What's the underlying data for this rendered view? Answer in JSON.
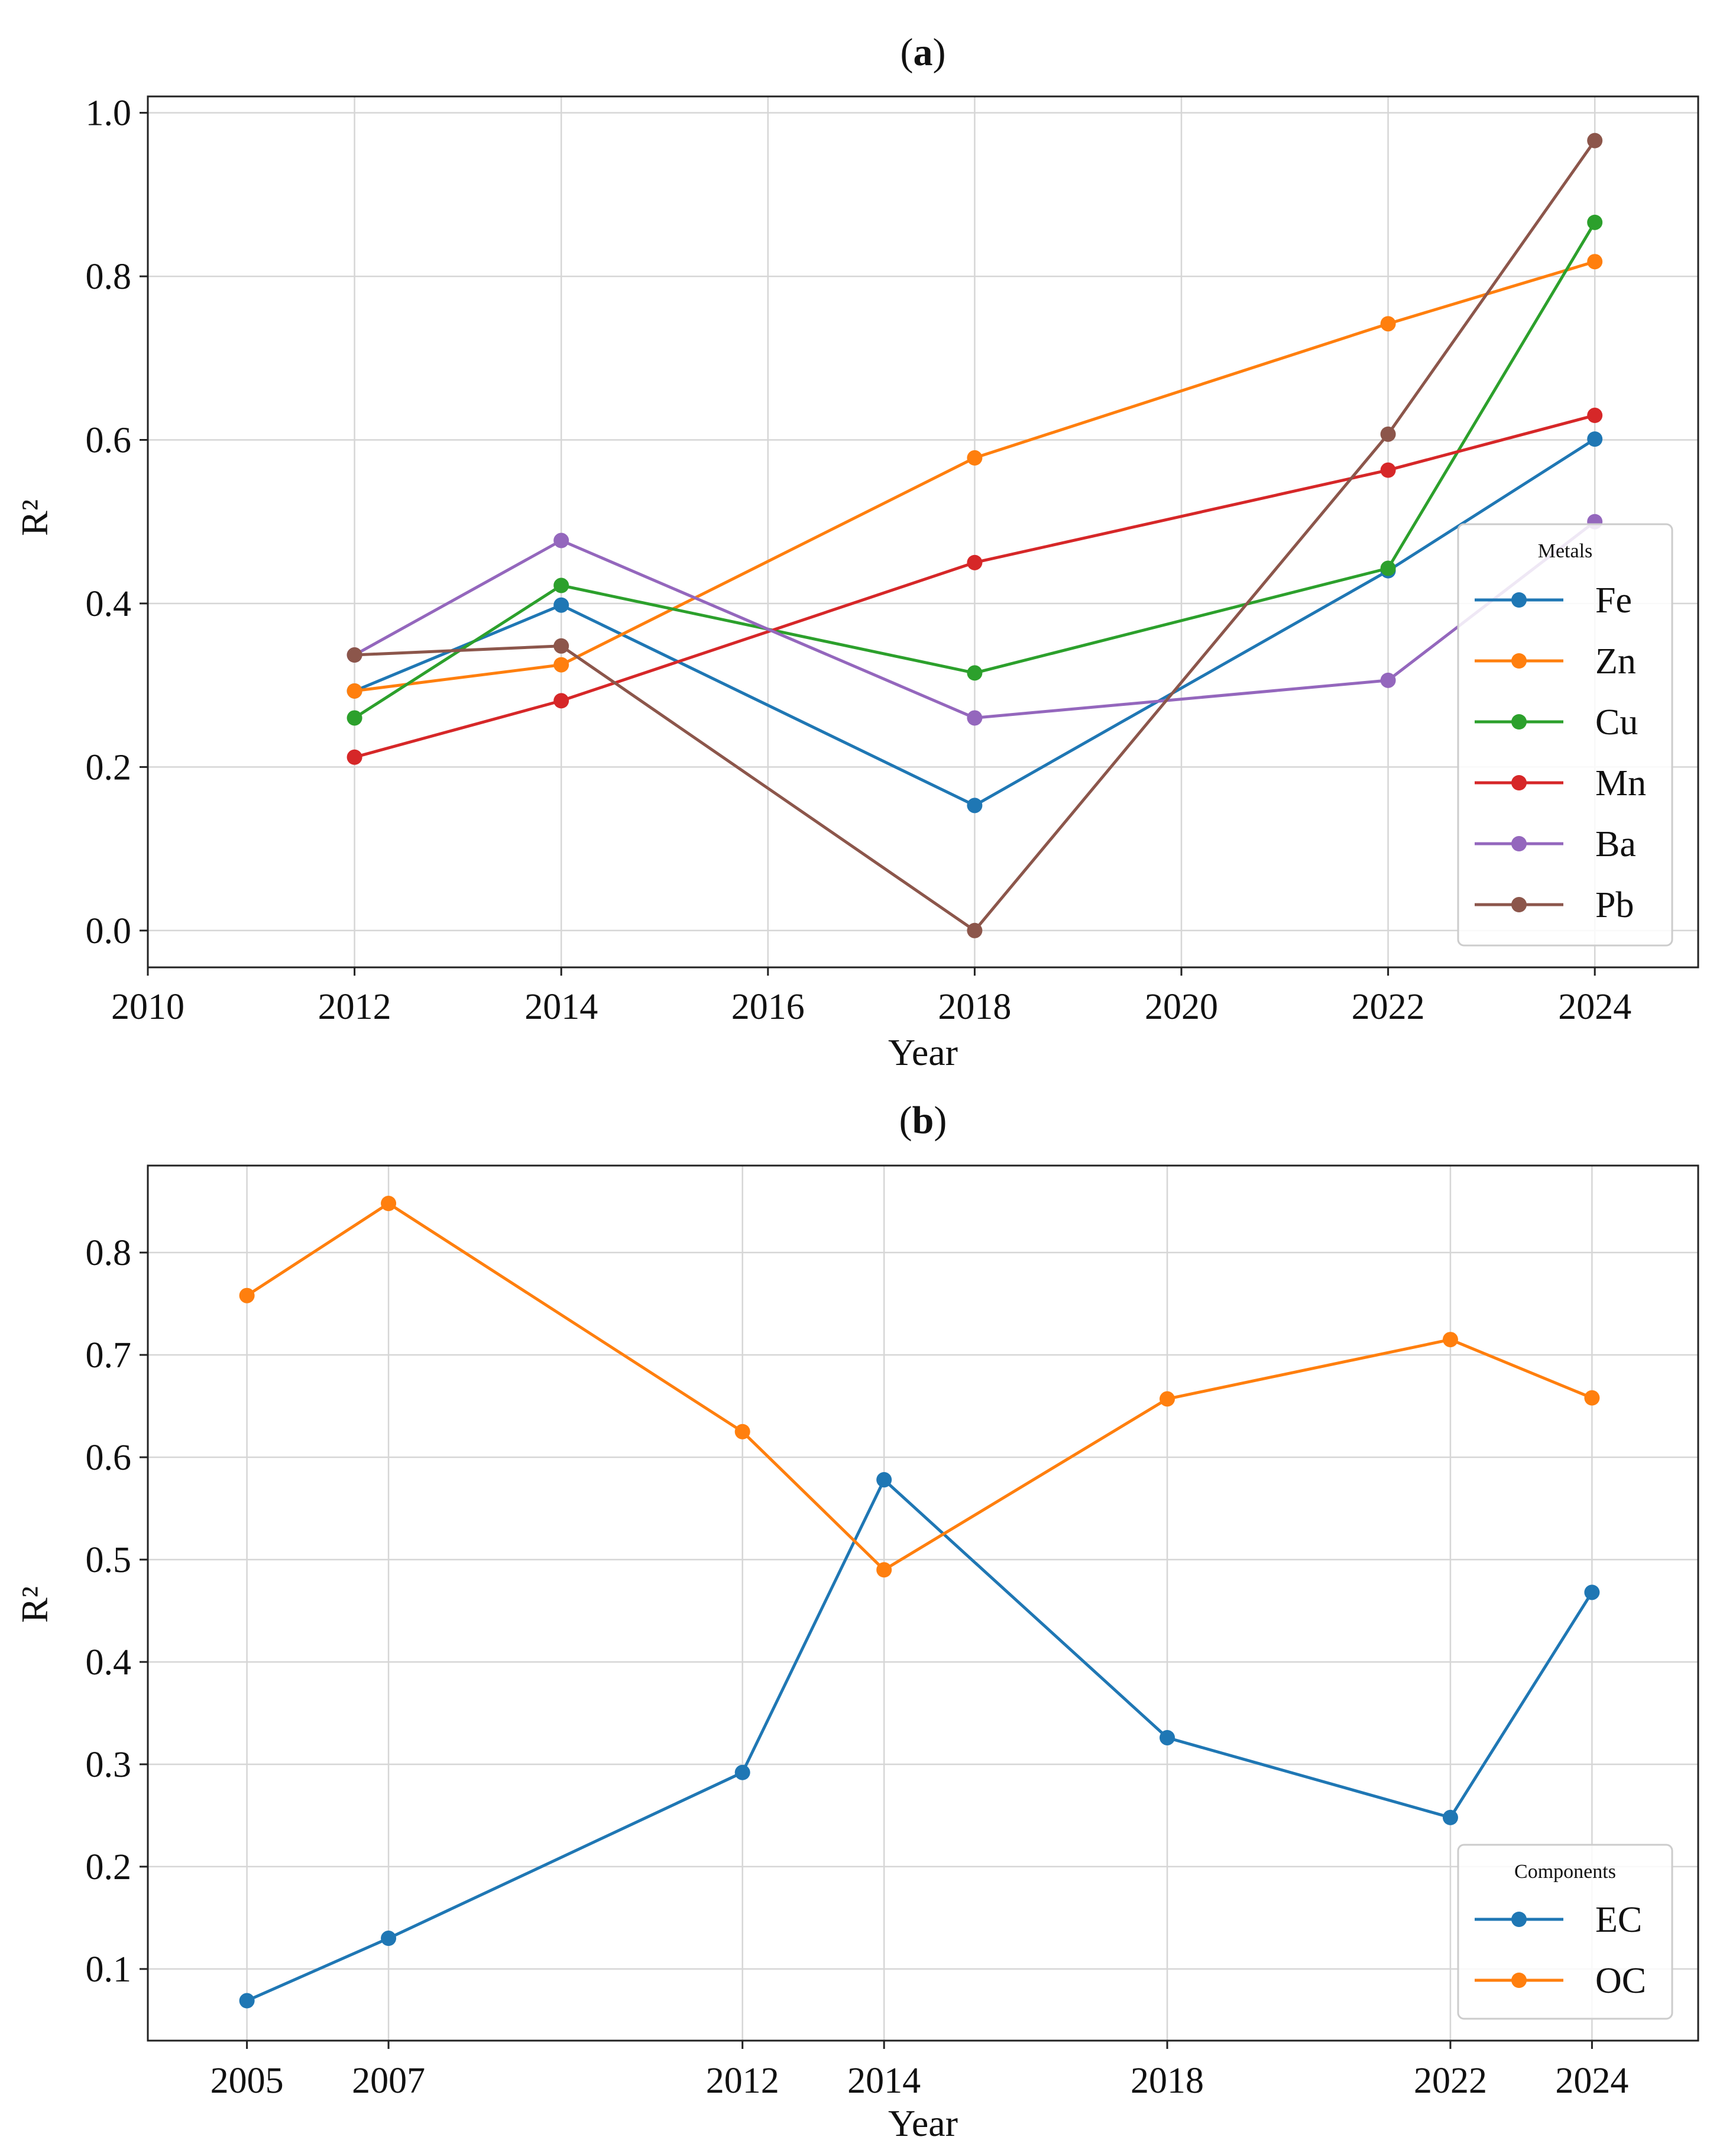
{
  "chart_data": [
    {
      "type": "line",
      "panel_label": "a",
      "xlabel": "Year",
      "ylabel": "R²",
      "xlim": [
        2010,
        2025
      ],
      "ylim": [
        -0.045,
        1.02
      ],
      "xticks": [
        "2010",
        "2012",
        "2014",
        "2016",
        "2018",
        "2020",
        "2022",
        "2024"
      ],
      "xtick_values": [
        2010,
        2012,
        2014,
        2016,
        2018,
        2020,
        2022,
        2024
      ],
      "yticks": [
        "0.0",
        "0.2",
        "0.4",
        "0.6",
        "0.8",
        "1.0"
      ],
      "ytick_values": [
        0.0,
        0.2,
        0.4,
        0.6,
        0.8,
        1.0
      ],
      "grid": true,
      "legend": {
        "title": "Metals",
        "position": "lower-right"
      },
      "x": [
        2012,
        2014,
        2018,
        2022,
        2024
      ],
      "series": [
        {
          "name": "Fe",
          "color": "#1f77b4",
          "values": [
            0.293,
            0.398,
            0.153,
            0.44,
            0.601
          ]
        },
        {
          "name": "Zn",
          "color": "#ff7f0e",
          "values": [
            0.293,
            0.325,
            0.578,
            0.742,
            0.818
          ]
        },
        {
          "name": "Cu",
          "color": "#2ca02c",
          "values": [
            0.26,
            0.422,
            0.315,
            0.443,
            0.866
          ]
        },
        {
          "name": "Mn",
          "color": "#d62728",
          "values": [
            0.212,
            0.281,
            0.45,
            0.563,
            0.63
          ]
        },
        {
          "name": "Ba",
          "color": "#9467bd",
          "values": [
            0.337,
            0.477,
            0.26,
            0.306,
            0.5
          ]
        },
        {
          "name": "Pb",
          "color": "#8c564b",
          "values": [
            0.337,
            0.348,
            0.0,
            0.607,
            0.966
          ]
        }
      ]
    },
    {
      "type": "line",
      "panel_label": "b",
      "xlabel": "Year",
      "ylabel": "R²",
      "xlim": [
        2003.6,
        2025.5
      ],
      "ylim": [
        0.03,
        0.885
      ],
      "xticks": [
        "2005",
        "2007",
        "2012",
        "2014",
        "2018",
        "2022",
        "2024"
      ],
      "xtick_values": [
        2005,
        2007,
        2012,
        2014,
        2018,
        2022,
        2024
      ],
      "yticks": [
        "0.1",
        "0.2",
        "0.3",
        "0.4",
        "0.5",
        "0.6",
        "0.7",
        "0.8"
      ],
      "ytick_values": [
        0.1,
        0.2,
        0.3,
        0.4,
        0.5,
        0.6,
        0.7,
        0.8
      ],
      "grid": true,
      "legend": {
        "title": "Components",
        "position": "lower-right"
      },
      "x": [
        2005,
        2007,
        2012,
        2014,
        2018,
        2022,
        2024
      ],
      "series": [
        {
          "name": "EC",
          "color": "#1f77b4",
          "values": [
            0.069,
            0.13,
            0.292,
            0.578,
            0.326,
            0.248,
            0.468
          ]
        },
        {
          "name": "OC",
          "color": "#ff7f0e",
          "values": [
            0.758,
            0.848,
            0.625,
            0.49,
            0.657,
            0.715,
            0.658
          ]
        }
      ]
    }
  ]
}
